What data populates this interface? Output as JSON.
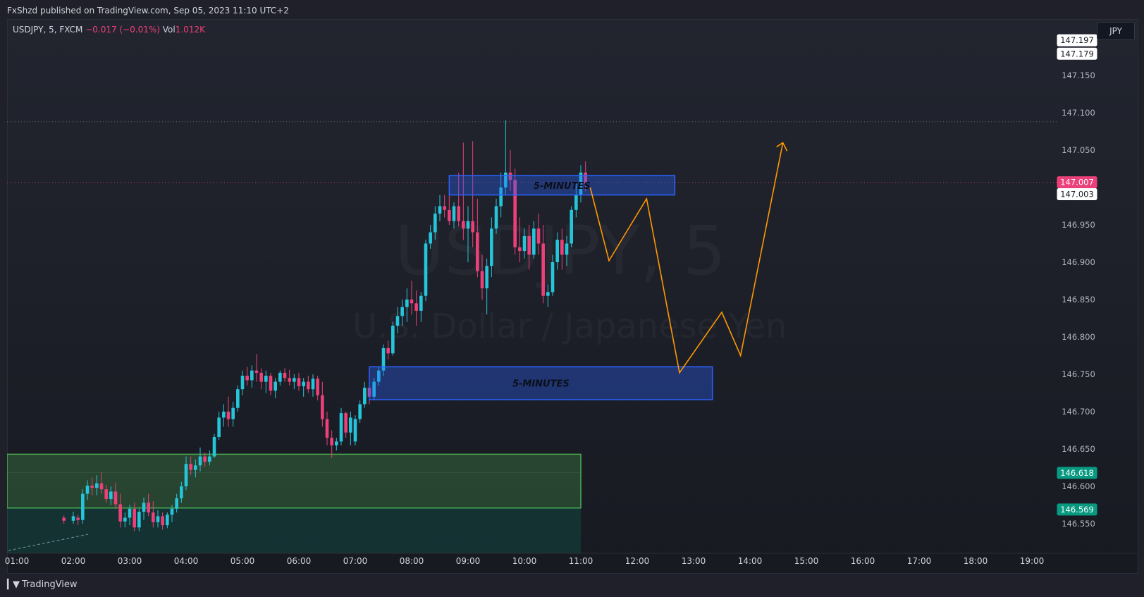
{
  "header": {
    "published": "FxShzd published on TradingView.com, Sep 05, 2023 11:10 UTC+2"
  },
  "legend": {
    "symbol": "USDJPY, 5, FXCM",
    "change": "−0.017 (−0.01%)",
    "vol_label": "Vol",
    "vol_value": "1.012K"
  },
  "watermark": {
    "main": "USDJPY, 5",
    "sub": "U.S. Dollar / Japanese Yen"
  },
  "currency": "JPY",
  "footer": {
    "brand": "TradingView",
    "icon": "tradingview-logo-icon"
  },
  "colors": {
    "up": "#26c6da",
    "down": "#ec407a",
    "zone_blue": "#2962ff",
    "zone_green": "#4caf50",
    "projection": "#ff9800",
    "last_price": "#ec407a",
    "support_label": "#089981"
  },
  "chart_data": {
    "type": "candlestick",
    "symbol": "USDJPY",
    "timeframe": "5",
    "x_ticks": [
      "01:00",
      "02:00",
      "03:00",
      "04:00",
      "05:00",
      "06:00",
      "07:00",
      "08:00",
      "09:00",
      "10:00",
      "11:00",
      "12:00",
      "13:00",
      "14:00",
      "15:00",
      "16:00",
      "17:00",
      "18:00",
      "19:00"
    ],
    "y_ticks": [
      "146.550",
      "146.600",
      "146.650",
      "146.700",
      "146.750",
      "146.800",
      "146.850",
      "146.900",
      "146.950",
      "147.000",
      "147.050",
      "147.100",
      "147.150"
    ],
    "ylim": [
      146.535,
      147.205
    ],
    "candles": [
      {
        "t": "01:50",
        "o": 146.558,
        "h": 146.561,
        "l": 146.55,
        "c": 146.554
      },
      {
        "t": "02:00",
        "o": 146.554,
        "h": 146.566,
        "l": 146.55,
        "c": 146.56
      },
      {
        "t": "02:05",
        "o": 146.558,
        "h": 146.562,
        "l": 146.548,
        "c": 146.555
      },
      {
        "t": "02:10",
        "o": 146.555,
        "h": 146.596,
        "l": 146.55,
        "c": 146.59
      },
      {
        "t": "02:15",
        "o": 146.59,
        "h": 146.608,
        "l": 146.582,
        "c": 146.601
      },
      {
        "t": "02:20",
        "o": 146.601,
        "h": 146.612,
        "l": 146.588,
        "c": 146.598
      },
      {
        "t": "02:25",
        "o": 146.598,
        "h": 146.615,
        "l": 146.588,
        "c": 146.604
      },
      {
        "t": "02:30",
        "o": 146.604,
        "h": 146.619,
        "l": 146.59,
        "c": 146.596
      },
      {
        "t": "02:35",
        "o": 146.596,
        "h": 146.602,
        "l": 146.578,
        "c": 146.583
      },
      {
        "t": "02:40",
        "o": 146.583,
        "h": 146.6,
        "l": 146.575,
        "c": 146.593
      },
      {
        "t": "02:45",
        "o": 146.593,
        "h": 146.605,
        "l": 146.57,
        "c": 146.576
      },
      {
        "t": "02:50",
        "o": 146.576,
        "h": 146.59,
        "l": 146.545,
        "c": 146.553
      },
      {
        "t": "02:55",
        "o": 146.553,
        "h": 146.565,
        "l": 146.545,
        "c": 146.558
      },
      {
        "t": "03:00",
        "o": 146.558,
        "h": 146.575,
        "l": 146.548,
        "c": 146.57
      },
      {
        "t": "03:05",
        "o": 146.57,
        "h": 146.578,
        "l": 146.54,
        "c": 146.545
      },
      {
        "t": "03:10",
        "o": 146.545,
        "h": 146.57,
        "l": 146.54,
        "c": 146.566
      },
      {
        "t": "03:15",
        "o": 146.566,
        "h": 146.585,
        "l": 146.555,
        "c": 146.578
      },
      {
        "t": "03:20",
        "o": 146.578,
        "h": 146.59,
        "l": 146.56,
        "c": 146.565
      },
      {
        "t": "03:25",
        "o": 146.565,
        "h": 146.58,
        "l": 146.545,
        "c": 146.552
      },
      {
        "t": "03:30",
        "o": 146.552,
        "h": 146.568,
        "l": 146.545,
        "c": 146.56
      },
      {
        "t": "03:35",
        "o": 146.56,
        "h": 146.565,
        "l": 146.542,
        "c": 146.548
      },
      {
        "t": "03:40",
        "o": 146.548,
        "h": 146.565,
        "l": 146.544,
        "c": 146.562
      },
      {
        "t": "03:45",
        "o": 146.562,
        "h": 146.575,
        "l": 146.552,
        "c": 146.57
      },
      {
        "t": "03:50",
        "o": 146.57,
        "h": 146.59,
        "l": 146.565,
        "c": 146.584
      },
      {
        "t": "03:55",
        "o": 146.584,
        "h": 146.606,
        "l": 146.578,
        "c": 146.6
      },
      {
        "t": "04:00",
        "o": 146.6,
        "h": 146.64,
        "l": 146.595,
        "c": 146.63
      },
      {
        "t": "04:05",
        "o": 146.63,
        "h": 146.64,
        "l": 146.615,
        "c": 146.622
      },
      {
        "t": "04:10",
        "o": 146.622,
        "h": 146.636,
        "l": 146.612,
        "c": 146.628
      },
      {
        "t": "04:15",
        "o": 146.628,
        "h": 146.652,
        "l": 146.62,
        "c": 146.64
      },
      {
        "t": "04:20",
        "o": 146.64,
        "h": 146.645,
        "l": 146.626,
        "c": 146.633
      },
      {
        "t": "04:25",
        "o": 146.633,
        "h": 146.648,
        "l": 146.628,
        "c": 146.64
      },
      {
        "t": "04:30",
        "o": 146.64,
        "h": 146.67,
        "l": 146.638,
        "c": 146.666
      },
      {
        "t": "04:35",
        "o": 146.666,
        "h": 146.7,
        "l": 146.662,
        "c": 146.692
      },
      {
        "t": "04:40",
        "o": 146.692,
        "h": 146.71,
        "l": 146.68,
        "c": 146.7
      },
      {
        "t": "04:45",
        "o": 146.7,
        "h": 146.72,
        "l": 146.68,
        "c": 146.69
      },
      {
        "t": "04:50",
        "o": 146.69,
        "h": 146.713,
        "l": 146.68,
        "c": 146.705
      },
      {
        "t": "04:55",
        "o": 146.705,
        "h": 146.735,
        "l": 146.7,
        "c": 146.73
      },
      {
        "t": "05:00",
        "o": 146.73,
        "h": 146.755,
        "l": 146.722,
        "c": 146.748
      },
      {
        "t": "05:05",
        "o": 146.748,
        "h": 146.76,
        "l": 146.735,
        "c": 146.742
      },
      {
        "t": "05:10",
        "o": 146.742,
        "h": 146.762,
        "l": 146.732,
        "c": 146.755
      },
      {
        "t": "05:15",
        "o": 146.755,
        "h": 146.777,
        "l": 146.74,
        "c": 146.752
      },
      {
        "t": "05:20",
        "o": 146.752,
        "h": 146.758,
        "l": 146.73,
        "c": 146.74
      },
      {
        "t": "05:25",
        "o": 146.74,
        "h": 146.755,
        "l": 146.725,
        "c": 146.748
      },
      {
        "t": "05:30",
        "o": 146.748,
        "h": 146.752,
        "l": 146.722,
        "c": 146.728
      },
      {
        "t": "05:35",
        "o": 146.728,
        "h": 146.745,
        "l": 146.718,
        "c": 146.74
      },
      {
        "t": "05:40",
        "o": 146.74,
        "h": 146.755,
        "l": 146.735,
        "c": 146.752
      },
      {
        "t": "05:45",
        "o": 146.752,
        "h": 146.758,
        "l": 146.74,
        "c": 146.745
      },
      {
        "t": "05:50",
        "o": 146.745,
        "h": 146.756,
        "l": 146.735,
        "c": 146.74
      },
      {
        "t": "05:55",
        "o": 146.74,
        "h": 146.75,
        "l": 146.73,
        "c": 146.745
      },
      {
        "t": "06:00",
        "o": 146.745,
        "h": 146.752,
        "l": 146.728,
        "c": 146.734
      },
      {
        "t": "06:05",
        "o": 146.734,
        "h": 146.745,
        "l": 146.72,
        "c": 146.74
      },
      {
        "t": "06:10",
        "o": 146.74,
        "h": 146.748,
        "l": 146.725,
        "c": 146.73
      },
      {
        "t": "06:15",
        "o": 146.73,
        "h": 146.75,
        "l": 146.72,
        "c": 146.744
      },
      {
        "t": "06:20",
        "o": 146.744,
        "h": 146.748,
        "l": 146.715,
        "c": 146.722
      },
      {
        "t": "06:25",
        "o": 146.722,
        "h": 146.74,
        "l": 146.68,
        "c": 146.69
      },
      {
        "t": "06:30",
        "o": 146.69,
        "h": 146.7,
        "l": 146.655,
        "c": 146.665
      },
      {
        "t": "06:35",
        "o": 146.665,
        "h": 146.675,
        "l": 146.638,
        "c": 146.655
      },
      {
        "t": "06:40",
        "o": 146.655,
        "h": 146.665,
        "l": 146.648,
        "c": 146.66
      },
      {
        "t": "06:45",
        "o": 146.66,
        "h": 146.705,
        "l": 146.655,
        "c": 146.698
      },
      {
        "t": "06:50",
        "o": 146.698,
        "h": 146.7,
        "l": 146.665,
        "c": 146.672
      },
      {
        "t": "06:55",
        "o": 146.672,
        "h": 146.7,
        "l": 146.655,
        "c": 146.692
      },
      {
        "t": "07:00",
        "o": 146.66,
        "h": 146.695,
        "l": 146.655,
        "c": 146.69
      },
      {
        "t": "07:05",
        "o": 146.69,
        "h": 146.715,
        "l": 146.685,
        "c": 146.71
      },
      {
        "t": "07:10",
        "o": 146.71,
        "h": 146.74,
        "l": 146.705,
        "c": 146.732
      },
      {
        "t": "07:15",
        "o": 146.732,
        "h": 146.745,
        "l": 146.71,
        "c": 146.72
      },
      {
        "t": "07:20",
        "o": 146.72,
        "h": 146.745,
        "l": 146.715,
        "c": 146.74
      },
      {
        "t": "07:25",
        "o": 146.74,
        "h": 146.76,
        "l": 146.735,
        "c": 146.755
      },
      {
        "t": "07:30",
        "o": 146.755,
        "h": 146.79,
        "l": 146.748,
        "c": 146.785
      },
      {
        "t": "07:35",
        "o": 146.785,
        "h": 146.795,
        "l": 146.77,
        "c": 146.778
      },
      {
        "t": "07:40",
        "o": 146.778,
        "h": 146.82,
        "l": 146.775,
        "c": 146.815
      },
      {
        "t": "07:45",
        "o": 146.815,
        "h": 146.84,
        "l": 146.805,
        "c": 146.828
      },
      {
        "t": "07:50",
        "o": 146.828,
        "h": 146.85,
        "l": 146.815,
        "c": 146.84
      },
      {
        "t": "07:55",
        "o": 146.84,
        "h": 146.865,
        "l": 146.82,
        "c": 146.85
      },
      {
        "t": "08:00",
        "o": 146.85,
        "h": 146.875,
        "l": 146.83,
        "c": 146.845
      },
      {
        "t": "08:05",
        "o": 146.845,
        "h": 146.862,
        "l": 146.815,
        "c": 146.835
      },
      {
        "t": "08:10",
        "o": 146.835,
        "h": 146.86,
        "l": 146.82,
        "c": 146.855
      },
      {
        "t": "08:15",
        "o": 146.855,
        "h": 146.93,
        "l": 146.848,
        "c": 146.925
      },
      {
        "t": "08:20",
        "o": 146.925,
        "h": 146.95,
        "l": 146.918,
        "c": 146.94
      },
      {
        "t": "08:25",
        "o": 146.94,
        "h": 146.975,
        "l": 146.93,
        "c": 146.965
      },
      {
        "t": "08:30",
        "o": 146.965,
        "h": 146.99,
        "l": 146.955,
        "c": 146.975
      },
      {
        "t": "08:35",
        "o": 146.975,
        "h": 146.99,
        "l": 146.96,
        "c": 146.97
      },
      {
        "t": "08:40",
        "o": 146.97,
        "h": 147.0,
        "l": 146.95,
        "c": 146.955
      },
      {
        "t": "08:45",
        "o": 146.955,
        "h": 146.98,
        "l": 146.945,
        "c": 146.975
      },
      {
        "t": "08:50",
        "o": 146.975,
        "h": 147.02,
        "l": 146.948,
        "c": 146.955
      },
      {
        "t": "08:55",
        "o": 146.955,
        "h": 147.06,
        "l": 146.93,
        "c": 146.945
      },
      {
        "t": "09:00",
        "o": 146.945,
        "h": 146.975,
        "l": 146.9,
        "c": 146.955
      },
      {
        "t": "09:05",
        "o": 146.955,
        "h": 147.062,
        "l": 146.92,
        "c": 146.94
      },
      {
        "t": "09:10",
        "o": 146.94,
        "h": 146.985,
        "l": 146.88,
        "c": 146.888
      },
      {
        "t": "09:15",
        "o": 146.888,
        "h": 146.91,
        "l": 146.85,
        "c": 146.865
      },
      {
        "t": "09:20",
        "o": 146.865,
        "h": 146.905,
        "l": 146.83,
        "c": 146.895
      },
      {
        "t": "09:25",
        "o": 146.895,
        "h": 146.96,
        "l": 146.88,
        "c": 146.945
      },
      {
        "t": "09:30",
        "o": 146.945,
        "h": 146.985,
        "l": 146.938,
        "c": 146.975
      },
      {
        "t": "09:35",
        "o": 146.975,
        "h": 147.02,
        "l": 146.96,
        "c": 147.0
      },
      {
        "t": "09:40",
        "o": 147.0,
        "h": 147.09,
        "l": 146.99,
        "c": 147.02
      },
      {
        "t": "09:45",
        "o": 147.02,
        "h": 147.05,
        "l": 146.995,
        "c": 147.01
      },
      {
        "t": "09:50",
        "o": 147.01,
        "h": 147.025,
        "l": 146.91,
        "c": 146.92
      },
      {
        "t": "09:55",
        "o": 146.92,
        "h": 146.96,
        "l": 146.9,
        "c": 146.915
      },
      {
        "t": "10:00",
        "o": 146.915,
        "h": 146.945,
        "l": 146.905,
        "c": 146.935
      },
      {
        "t": "10:05",
        "o": 146.935,
        "h": 146.95,
        "l": 146.89,
        "c": 146.91
      },
      {
        "t": "10:10",
        "o": 146.91,
        "h": 146.955,
        "l": 146.905,
        "c": 146.945
      },
      {
        "t": "10:15",
        "o": 146.945,
        "h": 146.965,
        "l": 146.91,
        "c": 146.925
      },
      {
        "t": "10:20",
        "o": 146.925,
        "h": 146.95,
        "l": 146.845,
        "c": 146.855
      },
      {
        "t": "10:25",
        "o": 146.855,
        "h": 146.87,
        "l": 146.84,
        "c": 146.86
      },
      {
        "t": "10:30",
        "o": 146.86,
        "h": 146.91,
        "l": 146.855,
        "c": 146.9
      },
      {
        "t": "10:35",
        "o": 146.9,
        "h": 146.94,
        "l": 146.89,
        "c": 146.93
      },
      {
        "t": "10:40",
        "o": 146.93,
        "h": 146.945,
        "l": 146.89,
        "c": 146.91
      },
      {
        "t": "10:45",
        "o": 146.91,
        "h": 146.935,
        "l": 146.895,
        "c": 146.925
      },
      {
        "t": "10:50",
        "o": 146.925,
        "h": 146.975,
        "l": 146.92,
        "c": 146.97
      },
      {
        "t": "10:55",
        "o": 146.97,
        "h": 147.005,
        "l": 146.96,
        "c": 146.99
      },
      {
        "t": "11:00",
        "o": 146.99,
        "h": 147.03,
        "l": 146.98,
        "c": 147.02
      },
      {
        "t": "11:05",
        "o": 147.02,
        "h": 147.035,
        "l": 146.995,
        "c": 147.005
      }
    ],
    "zones": [
      {
        "label": "5-MINUTES",
        "t_start": "08:40",
        "t_end": "12:40",
        "top": 147.016,
        "bottom": 146.99,
        "color": "blue"
      },
      {
        "label": "5-MINUTES",
        "t_start": "07:15",
        "t_end": "13:20",
        "top": 146.76,
        "bottom": 146.716,
        "color": "blue"
      },
      {
        "label": "",
        "t_start": "01:00",
        "t_end": "11:00",
        "top": 146.643,
        "bottom": 146.571,
        "color": "green"
      }
    ],
    "projection_path": [
      {
        "t": "11:10",
        "p": 147.0
      },
      {
        "t": "11:30",
        "p": 146.902
      },
      {
        "t": "12:10",
        "p": 146.985
      },
      {
        "t": "12:45",
        "p": 146.752
      },
      {
        "t": "13:30",
        "p": 146.833
      },
      {
        "t": "13:50",
        "p": 146.775
      },
      {
        "t": "14:35",
        "p": 147.06
      }
    ],
    "horizontal_lines": [
      {
        "p": 147.088,
        "style": "dotted",
        "color": "gray"
      },
      {
        "p": 147.007,
        "style": "dotted",
        "color": "pink"
      }
    ],
    "price_labels": [
      {
        "value": "147.197",
        "p": 147.197,
        "kind": "white"
      },
      {
        "value": "147.179",
        "p": 147.179,
        "kind": "white"
      },
      {
        "value": "147.007",
        "p": 147.007,
        "kind": "last"
      },
      {
        "value": "147.003",
        "p": 146.991,
        "kind": "white"
      },
      {
        "value": "146.618",
        "p": 146.618,
        "kind": "green"
      },
      {
        "value": "146.569",
        "p": 146.569,
        "kind": "green"
      }
    ]
  }
}
